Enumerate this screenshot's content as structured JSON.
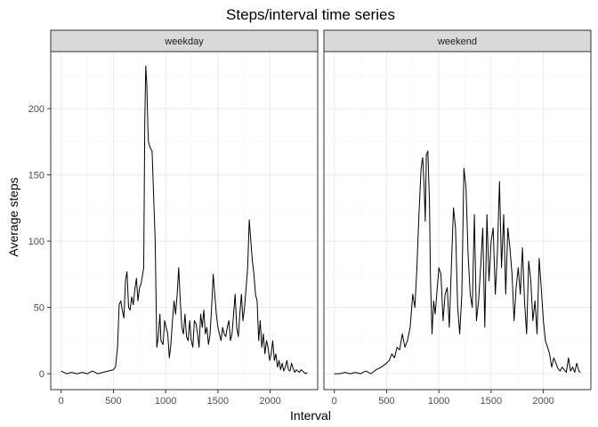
{
  "chart_data": {
    "type": "line",
    "title": "Steps/interval time series",
    "xlabel": "Interval",
    "ylabel": "Average steps",
    "xlim": [
      -100,
      2455
    ],
    "ylim": [
      -12,
      243
    ],
    "xticks": [
      0,
      500,
      1000,
      1500,
      2000
    ],
    "yticks": [
      0,
      50,
      100,
      150,
      200
    ],
    "grid": true,
    "facets": [
      {
        "label": "weekday",
        "x": [
          0,
          50,
          100,
          150,
          200,
          250,
          300,
          350,
          400,
          450,
          500,
          520,
          540,
          555,
          570,
          585,
          600,
          615,
          630,
          645,
          660,
          675,
          690,
          705,
          720,
          735,
          750,
          765,
          780,
          790,
          800,
          810,
          820,
          830,
          835,
          845,
          855,
          870,
          900,
          915,
          930,
          945,
          955,
          975,
          990,
          1005,
          1020,
          1035,
          1050,
          1065,
          1080,
          1095,
          1110,
          1125,
          1140,
          1155,
          1170,
          1185,
          1200,
          1215,
          1230,
          1245,
          1260,
          1275,
          1290,
          1305,
          1320,
          1335,
          1350,
          1365,
          1380,
          1395,
          1410,
          1425,
          1440,
          1455,
          1470,
          1485,
          1500,
          1515,
          1530,
          1545,
          1560,
          1575,
          1590,
          1605,
          1620,
          1635,
          1650,
          1665,
          1680,
          1695,
          1710,
          1725,
          1740,
          1755,
          1770,
          1785,
          1800,
          1815,
          1830,
          1845,
          1860,
          1875,
          1890,
          1905,
          1920,
          1935,
          1950,
          1965,
          1980,
          1995,
          2010,
          2025,
          2040,
          2055,
          2070,
          2085,
          2100,
          2115,
          2130,
          2145,
          2160,
          2175,
          2190,
          2205,
          2220,
          2235,
          2250,
          2265,
          2280,
          2295,
          2310,
          2325,
          2340,
          2355
        ],
        "y": [
          2,
          0,
          1,
          0,
          1,
          0,
          2,
          0,
          1,
          2,
          3,
          5,
          20,
          52,
          55,
          48,
          42,
          70,
          77,
          50,
          48,
          58,
          52,
          63,
          72,
          55,
          65,
          68,
          75,
          80,
          190,
          232,
          218,
          185,
          175,
          172,
          170,
          168,
          100,
          20,
          28,
          45,
          25,
          22,
          40,
          35,
          30,
          12,
          22,
          40,
          55,
          45,
          60,
          80,
          55,
          35,
          30,
          45,
          28,
          25,
          40,
          25,
          20,
          40,
          38,
          30,
          20,
          45,
          35,
          48,
          30,
          35,
          22,
          30,
          50,
          75,
          60,
          45,
          35,
          30,
          25,
          35,
          30,
          28,
          35,
          40,
          25,
          30,
          45,
          60,
          35,
          28,
          45,
          60,
          40,
          50,
          65,
          80,
          116,
          100,
          85,
          75,
          60,
          55,
          25,
          40,
          20,
          30,
          15,
          25,
          20,
          10,
          15,
          25,
          10,
          15,
          5,
          10,
          3,
          8,
          2,
          5,
          10,
          3,
          2,
          8,
          4,
          1,
          3,
          2,
          1,
          3,
          2,
          1,
          0,
          1
        ],
        "series_color": "#000000"
      },
      {
        "label": "weekend",
        "x": [
          0,
          50,
          100,
          150,
          200,
          250,
          300,
          350,
          400,
          450,
          500,
          525,
          550,
          575,
          600,
          625,
          650,
          675,
          700,
          725,
          750,
          770,
          790,
          810,
          830,
          845,
          860,
          870,
          880,
          895,
          910,
          920,
          935,
          950,
          965,
          980,
          1000,
          1020,
          1040,
          1060,
          1080,
          1100,
          1120,
          1140,
          1160,
          1180,
          1200,
          1220,
          1240,
          1260,
          1280,
          1300,
          1320,
          1340,
          1360,
          1380,
          1400,
          1420,
          1440,
          1460,
          1480,
          1500,
          1520,
          1540,
          1560,
          1580,
          1600,
          1620,
          1640,
          1660,
          1680,
          1700,
          1720,
          1740,
          1760,
          1780,
          1800,
          1820,
          1840,
          1860,
          1880,
          1900,
          1920,
          1940,
          1960,
          1980,
          2000,
          2020,
          2040,
          2060,
          2080,
          2100,
          2120,
          2140,
          2160,
          2180,
          2200,
          2220,
          2240,
          2260,
          2280,
          2300,
          2320,
          2340,
          2355
        ],
        "y": [
          0,
          0,
          1,
          0,
          1,
          0,
          2,
          0,
          3,
          5,
          8,
          10,
          15,
          12,
          20,
          18,
          30,
          20,
          25,
          35,
          60,
          50,
          80,
          120,
          155,
          163,
          140,
          115,
          165,
          168,
          130,
          70,
          30,
          55,
          45,
          60,
          80,
          75,
          40,
          60,
          65,
          35,
          80,
          125,
          110,
          50,
          30,
          60,
          155,
          140,
          90,
          60,
          50,
          120,
          40,
          55,
          80,
          110,
          35,
          120,
          70,
          100,
          110,
          60,
          90,
          145,
          80,
          120,
          60,
          110,
          95,
          75,
          40,
          65,
          80,
          60,
          95,
          55,
          30,
          85,
          70,
          40,
          55,
          30,
          87,
          65,
          40,
          25,
          20,
          15,
          5,
          12,
          8,
          4,
          2,
          5,
          3,
          1,
          12,
          2,
          5,
          1,
          8,
          2,
          1
        ],
        "series_color": "#000000"
      }
    ]
  }
}
